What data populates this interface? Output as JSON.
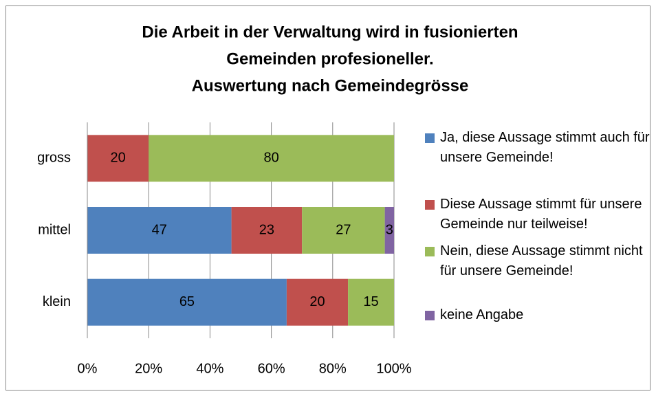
{
  "chart_data": {
    "type": "stacked_barh",
    "title": [
      "Die Arbeit in der Verwaltung  wird in fusionierten",
      "Gemeinden profesioneller.",
      "Auswertung nach Gemeindegrösse"
    ],
    "categories": [
      "klein",
      "mittel",
      "gross"
    ],
    "series": [
      {
        "name": "Ja, diese Aussage stimmt auch für unsere Gemeinde!",
        "color": "#4f81bd",
        "values": [
          65,
          47,
          0
        ]
      },
      {
        "name": "Diese Aussage stimmt für unsere Gemeinde nur teilweise!",
        "color": "#c0504d",
        "values": [
          20,
          23,
          20
        ]
      },
      {
        "name": "Nein, diese Aussage stimmt nicht für unsere Gemeinde!",
        "color": "#9bbb59",
        "values": [
          15,
          27,
          80
        ]
      },
      {
        "name": "keine Angabe",
        "color": "#8064a2",
        "values": [
          0,
          3,
          0
        ]
      }
    ],
    "xlim": [
      0,
      100
    ],
    "xticks": [
      {
        "value": 0,
        "label": "0%"
      },
      {
        "value": 20,
        "label": "20%"
      },
      {
        "value": 40,
        "label": "40%"
      },
      {
        "value": 60,
        "label": "60%"
      },
      {
        "value": 80,
        "label": "80%"
      },
      {
        "value": 100,
        "label": "100%"
      }
    ],
    "grid": true,
    "legend": "right"
  }
}
